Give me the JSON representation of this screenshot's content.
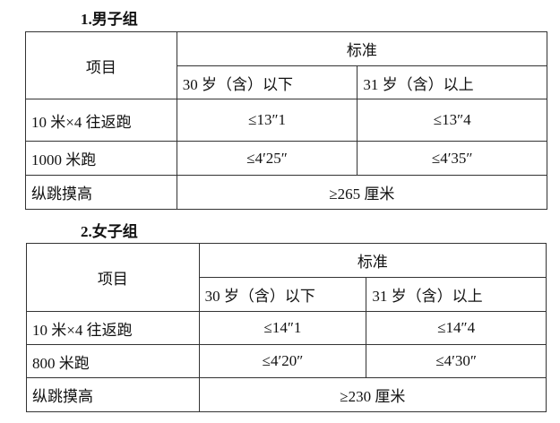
{
  "sections": [
    {
      "title": "1.男子组",
      "header": {
        "item": "项目",
        "standard": "标准",
        "age1": "30 岁（含）以下",
        "age2": "31 岁（含）以上"
      },
      "rows": [
        {
          "item": "10 米×4 往返跑",
          "v1": "≤13″1",
          "v2": "≤13″4"
        },
        {
          "item": "1000 米跑",
          "v1": "≤4′25″",
          "v2": "≤4′35″"
        }
      ],
      "jump": {
        "item": "纵跳摸高",
        "value": "≥265 厘米"
      }
    },
    {
      "title": "2.女子组",
      "header": {
        "item": "项目",
        "standard": "标准",
        "age1": "30 岁（含）以下",
        "age2": "31 岁（含）以上"
      },
      "rows": [
        {
          "item": "10 米×4 往返跑",
          "v1": "≤14″1",
          "v2": "≤14″4"
        },
        {
          "item": "800 米跑",
          "v1": "≤4′20″",
          "v2": "≤4′30″"
        }
      ],
      "jump": {
        "item": "纵跳摸高",
        "value": "≥230 厘米"
      }
    }
  ]
}
